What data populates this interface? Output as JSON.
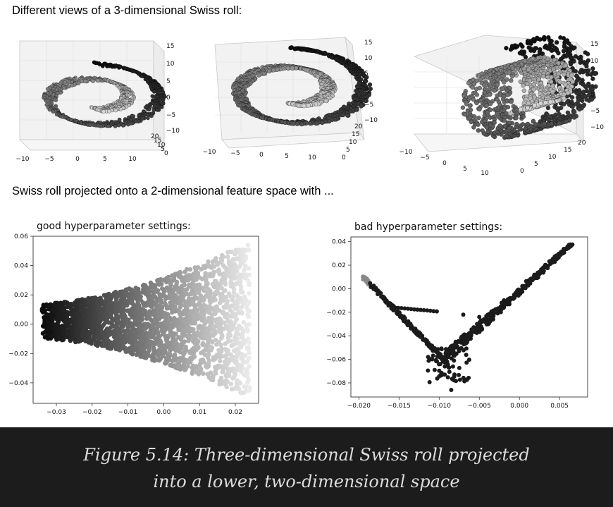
{
  "header_top": "Different views of a 3-dimensional Swiss roll:",
  "header_bottom": "Swiss roll projected onto a 2-dimensional feature space with ...",
  "caption": {
    "line1": "Figure 5.14: Three-dimensional Swiss roll projected",
    "line2": "into a lower, two-dimensional space"
  },
  "chart_data": [
    {
      "type": "scatter",
      "projection": "3d",
      "view": "elevated, partial roll",
      "x_ticks": [
        "−10",
        "−5",
        "0",
        "5",
        "10"
      ],
      "y_ticks": [
        "0",
        "5",
        "10",
        "15",
        "20"
      ],
      "z_ticks": [
        "−10",
        "−5",
        "0",
        "5",
        "10",
        "15"
      ],
      "xlim": [
        -11,
        14
      ],
      "ylim": [
        0,
        21
      ],
      "zlim": [
        -11,
        15
      ],
      "colormap": "gray, dark outer to light inner"
    },
    {
      "type": "scatter",
      "projection": "3d",
      "view": "oblique",
      "x_ticks": [
        "−10",
        "−5",
        "0",
        "5",
        "10"
      ],
      "y_ticks": [
        "0",
        "5",
        "10",
        "15",
        "20"
      ],
      "z_ticks": [
        "−10",
        "−5",
        "0",
        "5",
        "10",
        "15"
      ],
      "xlim": [
        -11,
        14
      ],
      "ylim": [
        0,
        21
      ],
      "zlim": [
        -11,
        15
      ],
      "colormap": "gray, dark outer to light inner"
    },
    {
      "type": "scatter",
      "projection": "3d",
      "view": "side, rolled cylinder",
      "x_ticks": [
        "−10",
        "−5",
        "0",
        "5",
        "10"
      ],
      "y_ticks": [
        "0",
        "5",
        "10",
        "15",
        "20"
      ],
      "z_ticks": [
        "−10",
        "−5",
        "0",
        "5",
        "10",
        "15"
      ],
      "xlim": [
        -11,
        14
      ],
      "ylim": [
        0,
        21
      ],
      "zlim": [
        -11,
        15
      ],
      "colormap": "gray, dark outer to light inner"
    },
    {
      "type": "scatter",
      "title": "good hyperparameter settings:",
      "xlim": [
        -0.0365,
        0.0265
      ],
      "ylim": [
        -0.054,
        0.06
      ],
      "x_ticks": [
        -0.03,
        -0.02,
        -0.01,
        0.0,
        0.01,
        0.02
      ],
      "x_tick_labels": [
        "−0.03",
        "−0.02",
        "−0.01",
        "0.00",
        "0.01",
        "0.02"
      ],
      "y_ticks": [
        -0.04,
        -0.02,
        0.0,
        0.02,
        0.04,
        0.06
      ],
      "y_tick_labels": [
        "−0.04",
        "−0.02",
        "0.00",
        "0.02",
        "0.04",
        "0.06"
      ],
      "description": "band from x=-0.034 (y between -0.010 and 0.014) widening to x=0.024 (y between -0.050 and 0.056), shading dark to light left to right",
      "band": {
        "x_start": -0.034,
        "x_end": 0.024,
        "y_low_start": -0.01,
        "y_high_start": 0.014,
        "y_low_end": -0.05,
        "y_high_end": 0.056
      }
    },
    {
      "type": "scatter",
      "title": "bad hyperparameter settings:",
      "xlim": [
        -0.021,
        0.0085
      ],
      "ylim": [
        -0.092,
        0.044
      ],
      "x_ticks": [
        -0.02,
        -0.015,
        -0.01,
        -0.005,
        0.0,
        0.005
      ],
      "x_tick_labels": [
        "−0.020",
        "−0.015",
        "−0.010",
        "−0.005",
        "0.000",
        "0.005"
      ],
      "y_ticks": [
        -0.08,
        -0.06,
        -0.04,
        -0.02,
        0.0,
        0.02,
        0.04
      ],
      "y_tick_labels": [
        "−0.08",
        "−0.06",
        "−0.04",
        "−0.02",
        "0.00",
        "0.02",
        "0.04"
      ],
      "description": "V-shaped curve: left arm from (-0.0195, 0.010) down to about (-0.0095, -0.060), right arm up to (0.0065, 0.038); a short branch near y=-0.018; scattered points around the vertex",
      "v_shape": {
        "left_top": [
          -0.0195,
          0.01
        ],
        "vertex": [
          -0.0095,
          -0.06
        ],
        "right_top": [
          0.0065,
          0.038
        ]
      }
    }
  ]
}
